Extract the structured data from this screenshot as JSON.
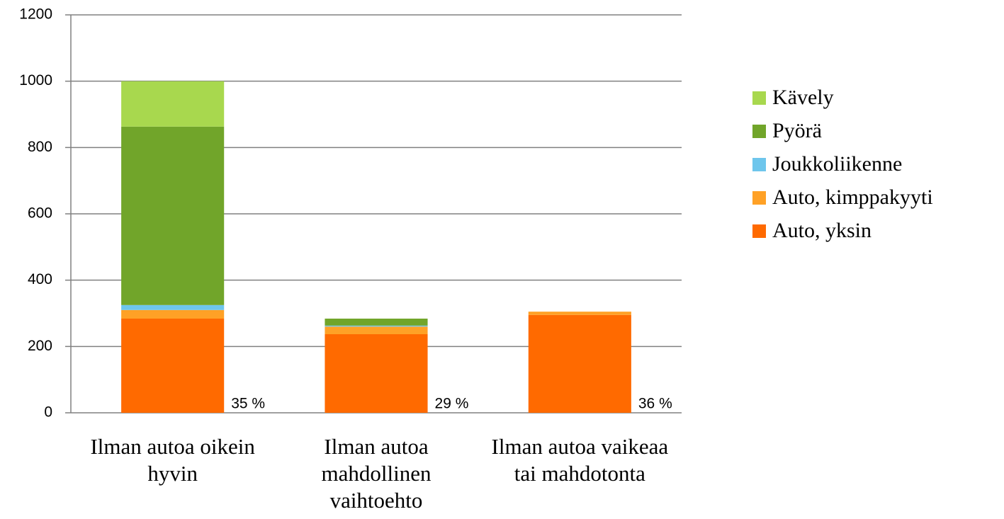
{
  "chart_data": {
    "type": "stacked_bar",
    "categories": [
      "Ilman autoa oikein hyvin",
      "Ilman autoa mahdollinen vaihtoehto",
      "Ilman autoa vaikeaa tai mahdotonta"
    ],
    "series": [
      {
        "name": "Auto, yksin",
        "color": "#ff6a00",
        "values": [
          284,
          237,
          295
        ]
      },
      {
        "name": "Auto, kimppakyyti",
        "color": "#ffa126",
        "values": [
          26,
          23,
          10
        ]
      },
      {
        "name": "Joukkoliikenne",
        "color": "#6ec6ec",
        "values": [
          15,
          3,
          0
        ]
      },
      {
        "name": "Pyörä",
        "color": "#71a52a",
        "values": [
          538,
          21,
          0
        ]
      },
      {
        "name": "Kävely",
        "color": "#a8d84e",
        "values": [
          137,
          0,
          0
        ]
      }
    ],
    "annotations": [
      "35 %",
      "29 %",
      "36 %"
    ],
    "ylim": [
      0,
      1200
    ],
    "yticks": [
      0,
      200,
      400,
      600,
      800,
      1000,
      1200
    ],
    "grid": true,
    "legend": "right"
  }
}
